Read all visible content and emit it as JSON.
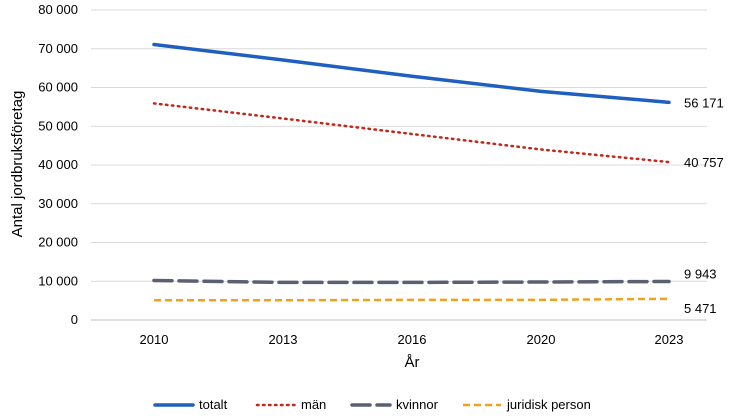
{
  "chart_data": {
    "type": "line",
    "title": "",
    "xlabel": "År",
    "ylabel": "Antal jordbruksföretag",
    "categories": [
      "2010",
      "2013",
      "2016",
      "2020",
      "2023"
    ],
    "ylim": [
      0,
      80000
    ],
    "yticks": [
      0,
      10000,
      20000,
      30000,
      40000,
      50000,
      60000,
      70000,
      80000
    ],
    "ytick_labels": [
      "0",
      "10 000",
      "20 000",
      "30 000",
      "40 000",
      "50 000",
      "60 000",
      "70 000",
      "80 000"
    ],
    "grid": true,
    "legend_position": "bottom",
    "series": [
      {
        "name": "totalt",
        "values": [
          71100,
          67100,
          62900,
          59000,
          56171
        ],
        "color": "#1f5fbf",
        "style": "solid",
        "end_label": "56 171"
      },
      {
        "name": "män",
        "values": [
          55900,
          52000,
          48000,
          44000,
          40757
        ],
        "color": "#c0281c",
        "style": "dotted",
        "end_label": "40 757"
      },
      {
        "name": "kvinnor",
        "values": [
          10200,
          9700,
          9700,
          9800,
          9943
        ],
        "color": "#5a5f73",
        "style": "dashed",
        "end_label": "9 943"
      },
      {
        "name": "juridisk person",
        "values": [
          5100,
          5100,
          5200,
          5200,
          5471
        ],
        "color": "#f0a21e",
        "style": "shortdash",
        "end_label": "5 471"
      }
    ]
  }
}
